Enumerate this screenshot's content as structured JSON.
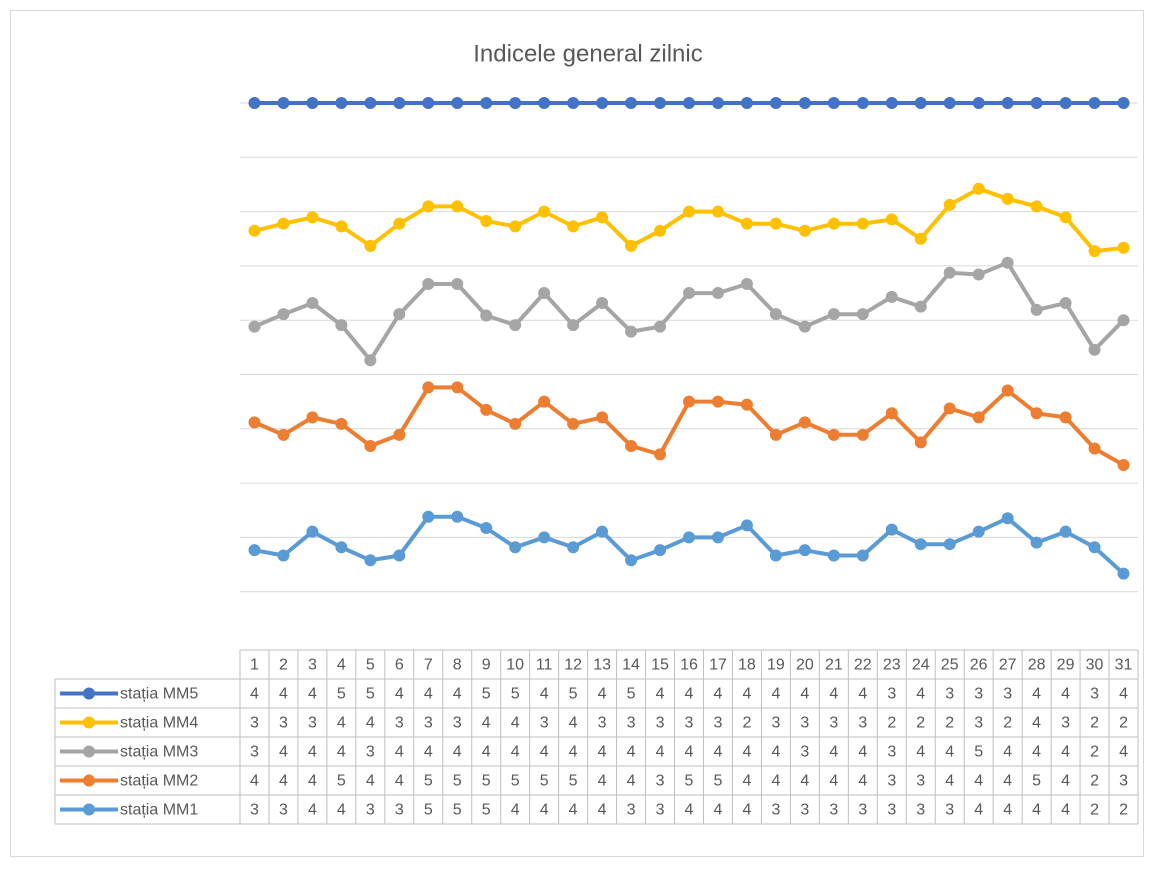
{
  "chart_data": {
    "type": "line",
    "stacking": "percent",
    "title": "Indicele general zilnic",
    "categories": [
      "1",
      "2",
      "3",
      "4",
      "5",
      "6",
      "7",
      "8",
      "9",
      "10",
      "11",
      "12",
      "13",
      "14",
      "15",
      "16",
      "17",
      "18",
      "19",
      "20",
      "21",
      "22",
      "23",
      "24",
      "25",
      "26",
      "27",
      "28",
      "29",
      "30",
      "31"
    ],
    "ylim": [
      0,
      100
    ],
    "yticks": [
      10,
      20,
      30,
      40,
      50,
      60,
      70,
      80,
      90,
      100
    ],
    "grid": true,
    "series": [
      {
        "name": "stația MM5",
        "color": "#4472c4",
        "values": [
          4,
          4,
          4,
          5,
          5,
          4,
          4,
          4,
          5,
          5,
          4,
          5,
          4,
          5,
          4,
          4,
          4,
          4,
          4,
          4,
          4,
          4,
          3,
          4,
          3,
          3,
          3,
          4,
          4,
          3,
          4
        ]
      },
      {
        "name": "stația MM4",
        "color": "#ffc000",
        "values": [
          3,
          3,
          3,
          4,
          4,
          3,
          3,
          3,
          4,
          4,
          3,
          4,
          3,
          3,
          3,
          3,
          3,
          2,
          3,
          3,
          3,
          3,
          2,
          2,
          2,
          3,
          2,
          4,
          3,
          2,
          2
        ]
      },
      {
        "name": "stația MM3",
        "color": "#a5a5a5",
        "values": [
          3,
          4,
          4,
          4,
          3,
          4,
          4,
          4,
          4,
          4,
          4,
          4,
          4,
          4,
          4,
          4,
          4,
          4,
          4,
          3,
          4,
          4,
          3,
          4,
          4,
          5,
          4,
          4,
          4,
          2,
          4
        ]
      },
      {
        "name": "stația MM2",
        "color": "#ed7d31",
        "values": [
          4,
          4,
          4,
          5,
          4,
          4,
          5,
          5,
          5,
          5,
          5,
          5,
          4,
          4,
          3,
          5,
          5,
          4,
          4,
          4,
          4,
          4,
          3,
          3,
          4,
          4,
          4,
          5,
          4,
          2,
          3
        ]
      },
      {
        "name": "stația MM1",
        "color": "#5b9bd5",
        "values": [
          3,
          3,
          4,
          4,
          3,
          3,
          5,
          5,
          5,
          4,
          4,
          4,
          4,
          3,
          3,
          4,
          4,
          4,
          3,
          3,
          3,
          3,
          3,
          3,
          3,
          4,
          4,
          4,
          4,
          2,
          2
        ]
      }
    ]
  }
}
